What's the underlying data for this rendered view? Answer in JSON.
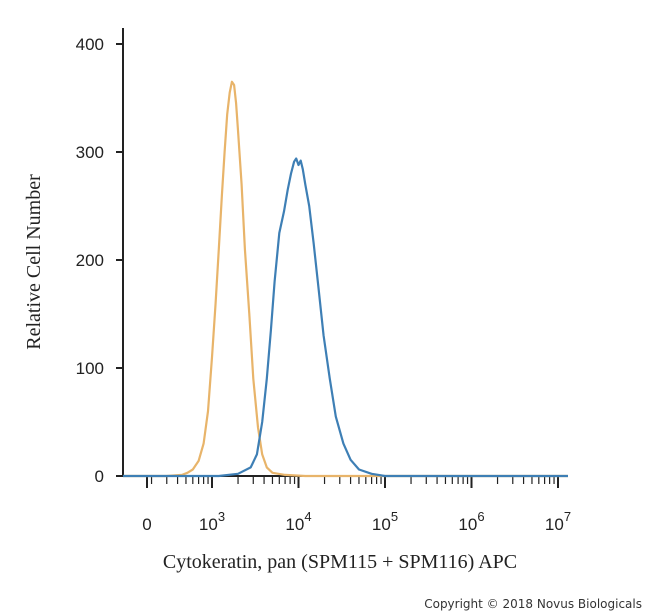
{
  "chart_data": {
    "type": "line",
    "xlabel": "Cytokeratin, pan (SPM115 + SPM116) APC",
    "ylabel": "Relative Cell Number",
    "x_scale": "log",
    "x_ticks": [
      {
        "label": "0",
        "value": 0
      },
      {
        "base": "10",
        "exp": "3",
        "value": 1000
      },
      {
        "base": "10",
        "exp": "4",
        "value": 10000
      },
      {
        "base": "10",
        "exp": "5",
        "value": 100000
      },
      {
        "base": "10",
        "exp": "6",
        "value": 1000000
      },
      {
        "base": "10",
        "exp": "7",
        "value": 10000000
      }
    ],
    "y_ticks": [
      "0",
      "100",
      "200",
      "300",
      "400"
    ],
    "ylim": [
      0,
      400
    ],
    "grid": false,
    "series": [
      {
        "color": "#e8b46a",
        "points": [
          [
            300,
            0
          ],
          [
            450,
            1
          ],
          [
            520,
            3
          ],
          [
            600,
            6
          ],
          [
            700,
            14
          ],
          [
            800,
            30
          ],
          [
            900,
            60
          ],
          [
            1000,
            110
          ],
          [
            1100,
            160
          ],
          [
            1200,
            210
          ],
          [
            1300,
            260
          ],
          [
            1400,
            300
          ],
          [
            1500,
            335
          ],
          [
            1600,
            355
          ],
          [
            1700,
            365
          ],
          [
            1800,
            362
          ],
          [
            1900,
            345
          ],
          [
            2000,
            320
          ],
          [
            2200,
            270
          ],
          [
            2400,
            210
          ],
          [
            2700,
            150
          ],
          [
            3000,
            90
          ],
          [
            3400,
            45
          ],
          [
            3800,
            20
          ],
          [
            4300,
            8
          ],
          [
            5000,
            3
          ],
          [
            7000,
            1
          ],
          [
            12000,
            0
          ]
        ]
      },
      {
        "color": "#3e7fb5",
        "points": [
          [
            1200,
            0
          ],
          [
            2000,
            2
          ],
          [
            2800,
            8
          ],
          [
            3300,
            20
          ],
          [
            3800,
            50
          ],
          [
            4300,
            90
          ],
          [
            4800,
            135
          ],
          [
            5300,
            180
          ],
          [
            6000,
            225
          ],
          [
            6800,
            245
          ],
          [
            7500,
            265
          ],
          [
            8200,
            280
          ],
          [
            8900,
            291
          ],
          [
            9400,
            294
          ],
          [
            10000,
            288
          ],
          [
            10600,
            292
          ],
          [
            11200,
            284
          ],
          [
            12000,
            270
          ],
          [
            13300,
            250
          ],
          [
            15000,
            215
          ],
          [
            17000,
            175
          ],
          [
            19500,
            130
          ],
          [
            23000,
            90
          ],
          [
            27000,
            55
          ],
          [
            33000,
            30
          ],
          [
            40000,
            15
          ],
          [
            50000,
            6
          ],
          [
            70000,
            2
          ],
          [
            100000,
            0
          ]
        ]
      }
    ]
  },
  "copyright": "Copyright © 2018 Novus Biologicals"
}
